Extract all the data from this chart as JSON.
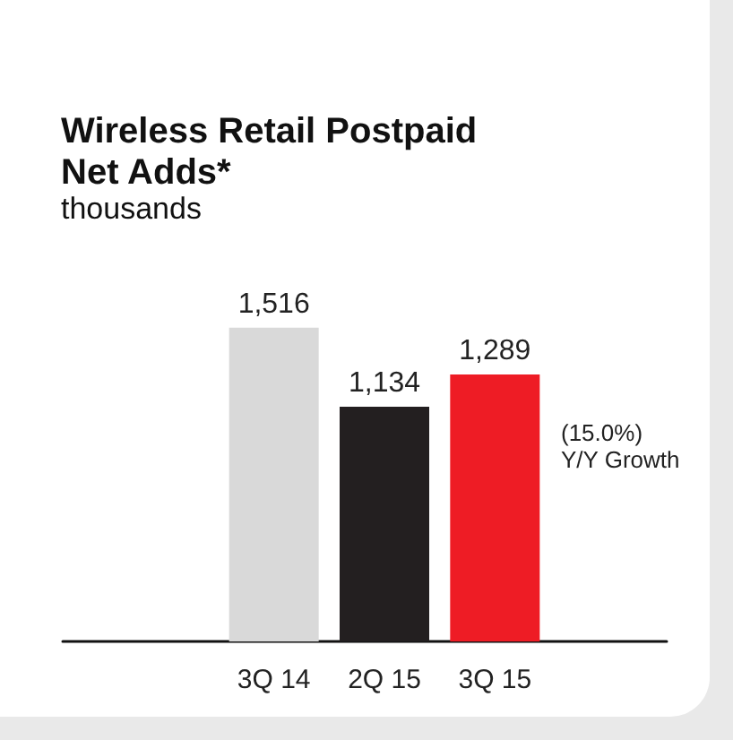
{
  "chart_data": {
    "type": "bar",
    "title": "Wireless Retail Postpaid Net Adds*",
    "subtitle": "thousands",
    "categories": [
      "3Q 14",
      "2Q 15",
      "3Q 15"
    ],
    "values": [
      1516,
      1134,
      1289
    ],
    "colors": [
      "#d9d9d9",
      "#231f20",
      "#ee1c25"
    ],
    "value_labels": [
      "1,516",
      "1,134",
      "1,289"
    ],
    "annotations": [
      "(15.0%)\nY/Y Growth"
    ]
  }
}
